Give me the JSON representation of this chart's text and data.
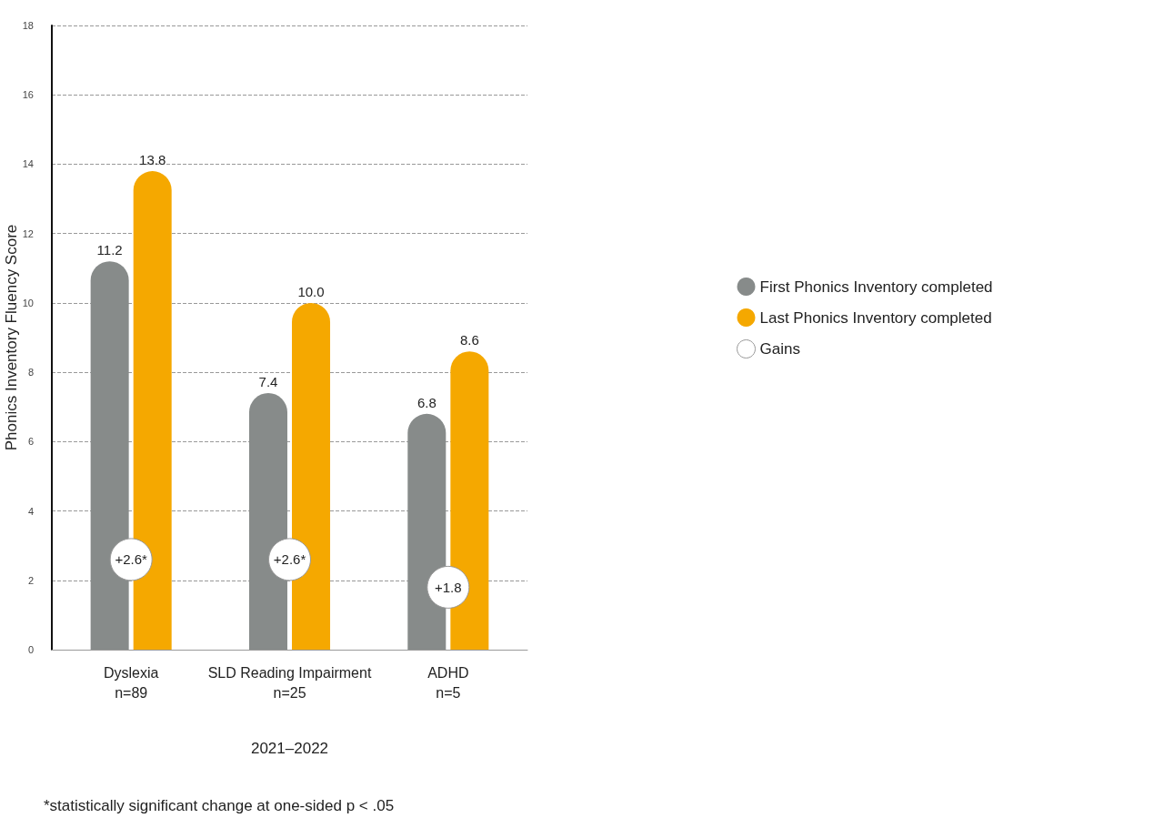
{
  "chart_data": {
    "type": "bar",
    "categories": [
      "Dyslexia\nn=89",
      "SLD Reading Impairment\nn=25",
      "ADHD\nn=5"
    ],
    "xlabel": "2021–2022",
    "ylabel": "Phonics Inventory Fluency Score",
    "series": [
      {
        "name": "First Phonics Inventory completed",
        "color": "#878b8a",
        "values": [
          11.2,
          7.4,
          6.8
        ],
        "value_labels": [
          "11.2",
          "7.4",
          "6.8"
        ]
      },
      {
        "name": "Last Phonics Inventory completed",
        "color": "#f5a800",
        "values": [
          13.8,
          10.0,
          8.6
        ],
        "value_labels": [
          "13.8",
          "10.0",
          "8.6"
        ]
      },
      {
        "name": "Gains",
        "type": "scatter",
        "color": "#ffffff",
        "values": [
          2.6,
          2.6,
          1.8
        ],
        "value_labels": [
          "+2.6*",
          "+2.6*",
          "+1.8"
        ]
      }
    ],
    "ylim": [
      0,
      18
    ],
    "yticks": [
      0,
      2,
      4,
      6,
      8,
      10,
      12,
      14,
      16,
      18
    ],
    "grid": "y",
    "legend": "right",
    "annotations": [
      "*statistically significant change at one-sided p < .05"
    ]
  }
}
